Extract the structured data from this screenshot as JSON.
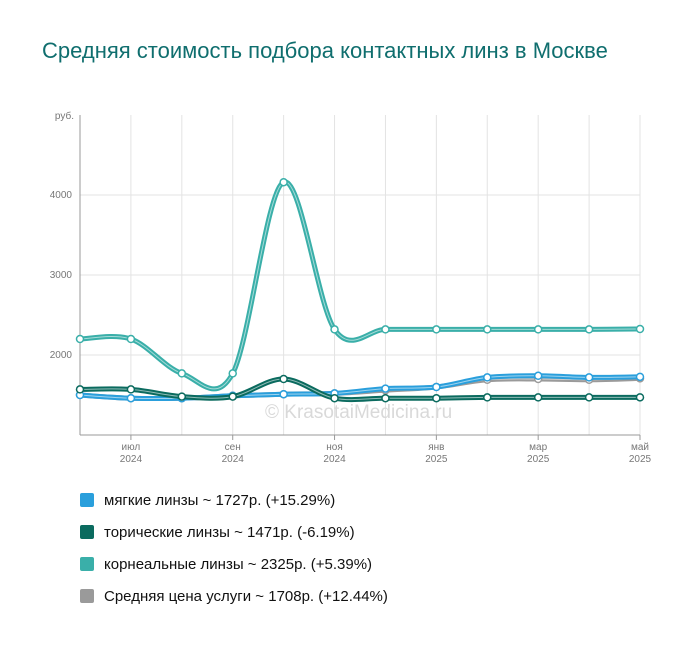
{
  "chart_data": {
    "type": "line",
    "title": "Средняя стоимость подбора контактных линз в Москве",
    "ylabel": "руб.",
    "xlabel": "",
    "watermark": "© KrasotaiMedicina.ru",
    "x_tick_labels": [
      {
        "month": "июл",
        "year": "2024"
      },
      {
        "month": "сен",
        "year": "2024"
      },
      {
        "month": "ноя",
        "year": "2024"
      },
      {
        "month": "янв",
        "year": "2025"
      },
      {
        "month": "мар",
        "year": "2025"
      },
      {
        "month": "май",
        "year": "2025"
      }
    ],
    "y_ticks": [
      2000,
      3000,
      4000
    ],
    "ylim": [
      1000,
      5000
    ],
    "x": [
      "2024-06",
      "2024-07",
      "2024-08",
      "2024-09",
      "2024-10",
      "2024-11",
      "2024-12",
      "2025-01",
      "2025-02",
      "2025-03",
      "2025-04",
      "2025-05"
    ],
    "grid": true,
    "legend_position": "bottom",
    "series": [
      {
        "name": "мягкие линзы ~ 1727р. (+15.29%)",
        "color": "#2a9fdc",
        "values": [
          1500,
          1460,
          1460,
          1490,
          1510,
          1520,
          1580,
          1600,
          1720,
          1740,
          1720,
          1727
        ]
      },
      {
        "name": "торические линзы ~ 1471р. (-6.19%)",
        "color": "#0b6b5f",
        "values": [
          1570,
          1570,
          1480,
          1480,
          1700,
          1460,
          1460,
          1460,
          1470,
          1470,
          1470,
          1471
        ]
      },
      {
        "name": "корнеальные линзы ~ 2325р. (+5.39%)",
        "color": "#3aafa9",
        "values": [
          2200,
          2200,
          1770,
          1770,
          4160,
          2320,
          2320,
          2320,
          2320,
          2320,
          2320,
          2325
        ]
      },
      {
        "name": "Средняя цена услуги ~ 1708р. (+12.44%)",
        "color": "#9a9a9a",
        "values": [
          1500,
          1460,
          1460,
          1490,
          1510,
          1520,
          1560,
          1600,
          1690,
          1700,
          1690,
          1708
        ]
      }
    ]
  }
}
